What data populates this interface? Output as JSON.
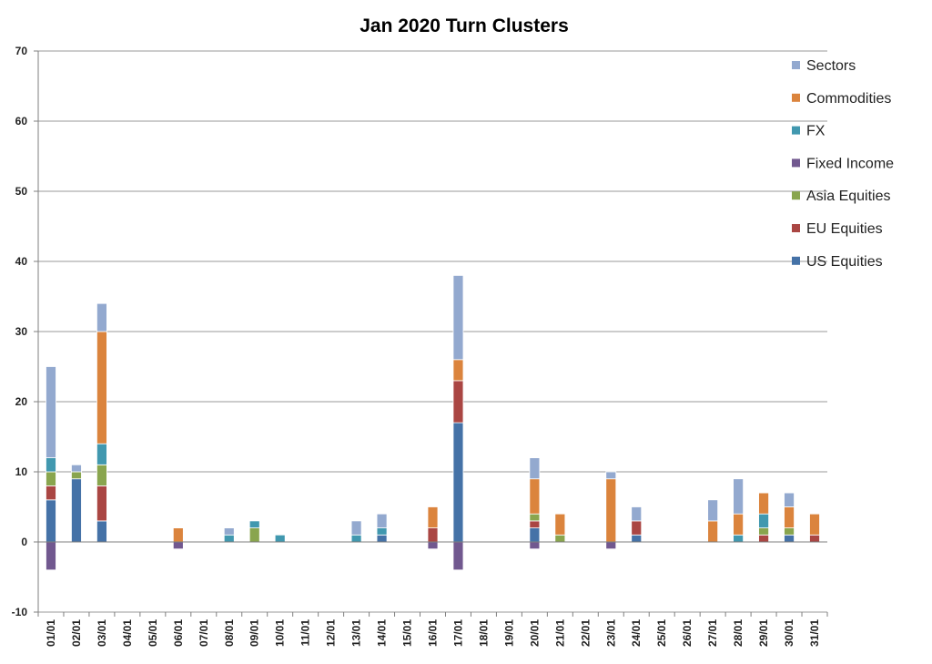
{
  "chart_data": {
    "type": "bar",
    "stacked": true,
    "title": "Jan 2020 Turn Clusters",
    "xlabel": "",
    "ylabel": "",
    "ylim": [
      -10,
      70
    ],
    "yticks": [
      -10,
      0,
      10,
      20,
      30,
      40,
      50,
      60,
      70
    ],
    "grid": "horizontal",
    "legend_position": "right",
    "categories": [
      "01/01",
      "02/01",
      "03/01",
      "04/01",
      "05/01",
      "06/01",
      "07/01",
      "08/01",
      "09/01",
      "10/01",
      "11/01",
      "12/01",
      "13/01",
      "14/01",
      "15/01",
      "16/01",
      "17/01",
      "18/01",
      "19/01",
      "20/01",
      "21/01",
      "22/01",
      "23/01",
      "24/01",
      "25/01",
      "26/01",
      "27/01",
      "28/01",
      "29/01",
      "30/01",
      "31/01"
    ],
    "series": [
      {
        "name": "US Equities",
        "color": "#4572a7",
        "values": [
          6,
          9,
          3,
          0,
          0,
          0,
          0,
          0,
          0,
          0,
          0,
          0,
          0,
          1,
          0,
          0,
          17,
          0,
          0,
          2,
          0,
          0,
          0,
          1,
          0,
          0,
          0,
          0,
          0,
          1,
          0
        ]
      },
      {
        "name": "EU Equities",
        "color": "#aa4643",
        "values": [
          2,
          0,
          5,
          0,
          0,
          0,
          0,
          0,
          0,
          0,
          0,
          0,
          0,
          0,
          0,
          2,
          6,
          0,
          0,
          1,
          0,
          0,
          0,
          2,
          0,
          0,
          0,
          0,
          1,
          0,
          1
        ]
      },
      {
        "name": "Asia Equities",
        "color": "#89a54e",
        "values": [
          2,
          1,
          3,
          0,
          0,
          0,
          0,
          0,
          2,
          0,
          0,
          0,
          0,
          0,
          0,
          0,
          0,
          0,
          0,
          1,
          1,
          0,
          0,
          0,
          0,
          0,
          0,
          0,
          1,
          1,
          0
        ]
      },
      {
        "name": "Fixed Income",
        "color": "#71588f",
        "values": [
          -4,
          0,
          0,
          0,
          0,
          -1,
          0,
          0,
          0,
          0,
          0,
          0,
          0,
          0,
          0,
          -1,
          -4,
          0,
          0,
          -1,
          0,
          0,
          -1,
          0,
          0,
          0,
          0,
          0,
          0,
          0,
          0
        ]
      },
      {
        "name": "FX",
        "color": "#4198af",
        "values": [
          2,
          0,
          3,
          0,
          0,
          0,
          0,
          1,
          1,
          1,
          0,
          0,
          1,
          1,
          0,
          0,
          0,
          0,
          0,
          0,
          0,
          0,
          0,
          0,
          0,
          0,
          0,
          1,
          2,
          0,
          0
        ]
      },
      {
        "name": "Commodities",
        "color": "#db843d",
        "values": [
          0,
          0,
          16,
          0,
          0,
          2,
          0,
          0,
          0,
          0,
          0,
          0,
          0,
          0,
          0,
          3,
          3,
          0,
          0,
          5,
          3,
          0,
          9,
          0,
          0,
          0,
          3,
          3,
          3,
          3,
          3
        ]
      },
      {
        "name": "Sectors",
        "color": "#93a9cf",
        "values": [
          13,
          1,
          4,
          0,
          0,
          0,
          0,
          1,
          0,
          0,
          0,
          0,
          2,
          2,
          0,
          0,
          12,
          0,
          0,
          3,
          0,
          0,
          1,
          2,
          0,
          0,
          3,
          5,
          0,
          2,
          0
        ]
      }
    ]
  }
}
